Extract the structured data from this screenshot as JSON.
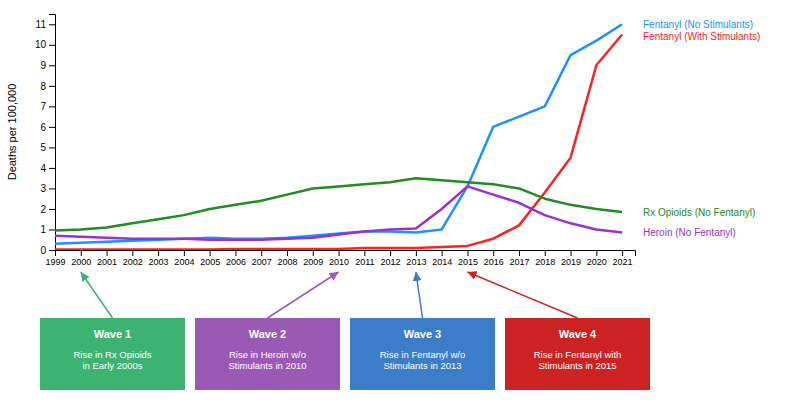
{
  "chart_data": {
    "type": "line",
    "ylabel": "Deaths per 100,000",
    "x": [
      1999,
      2000,
      2001,
      2002,
      2003,
      2004,
      2005,
      2006,
      2007,
      2008,
      2009,
      2010,
      2011,
      2012,
      2013,
      2014,
      2015,
      2016,
      2017,
      2018,
      2019,
      2020,
      2021
    ],
    "series": [
      {
        "name": "Fentanyl (No Stimulants)",
        "color": "#1E90FF",
        "values": [
          0.3,
          0.35,
          0.4,
          0.45,
          0.5,
          0.55,
          0.6,
          0.55,
          0.55,
          0.6,
          0.7,
          0.8,
          0.9,
          0.9,
          0.85,
          1.0,
          3.1,
          6.0,
          6.5,
          7.0,
          9.5,
          10.2,
          11.0
        ]
      },
      {
        "name": "Fentanyl (With Stimulants)",
        "color": "#FF2222",
        "values": [
          0.02,
          0.02,
          0.02,
          0.02,
          0.02,
          0.02,
          0.02,
          0.05,
          0.05,
          0.05,
          0.05,
          0.05,
          0.1,
          0.1,
          0.1,
          0.15,
          0.2,
          0.55,
          1.2,
          2.8,
          4.5,
          9.0,
          10.5
        ]
      },
      {
        "name": "Rx Opioids (No Fentanyl)",
        "color": "#228B22",
        "values": [
          0.95,
          1.0,
          1.1,
          1.3,
          1.5,
          1.7,
          2.0,
          2.2,
          2.4,
          2.7,
          3.0,
          3.1,
          3.2,
          3.3,
          3.5,
          3.4,
          3.3,
          3.2,
          3.0,
          2.5,
          2.2,
          2.0,
          1.85
        ]
      },
      {
        "name": "Heroin (No Fentanyl)",
        "color": "#9932CC",
        "values": [
          0.7,
          0.65,
          0.6,
          0.55,
          0.55,
          0.55,
          0.5,
          0.5,
          0.5,
          0.55,
          0.6,
          0.75,
          0.9,
          1.0,
          1.05,
          2.0,
          3.1,
          2.7,
          2.3,
          1.7,
          1.3,
          1.0,
          0.85
        ]
      }
    ],
    "xlim": [
      1999,
      2021.5
    ],
    "xticks": [
      1999,
      2000,
      2001,
      2002,
      2003,
      2004,
      2005,
      2006,
      2007,
      2008,
      2009,
      2010,
      2011,
      2012,
      2013,
      2014,
      2015,
      2016,
      2017,
      2018,
      2019,
      2020,
      2021
    ],
    "ylim": [
      0,
      11.5
    ],
    "yticks": [
      0,
      1,
      2,
      3,
      4,
      5,
      6,
      7,
      8,
      9,
      10,
      11
    ],
    "annotations": [
      {
        "label": "Wave 1",
        "text": "Rise in Rx Opioids\nin Early 2000s",
        "color": "#3CB371",
        "x": 2000
      },
      {
        "label": "Wave 2",
        "text": "Rise in Heroin w/o\nStimulants in 2010",
        "color": "#9B59B6",
        "x": 2010
      },
      {
        "label": "Wave 3",
        "text": "Rise in Fentanyl w/o\nStimulants in 2013",
        "color": "#3B7DC8",
        "x": 2013
      },
      {
        "label": "Wave 4",
        "text": "Rise in Fentanyl with\nStimulants in 2015",
        "color": "#CC2222",
        "x": 2015
      }
    ]
  }
}
